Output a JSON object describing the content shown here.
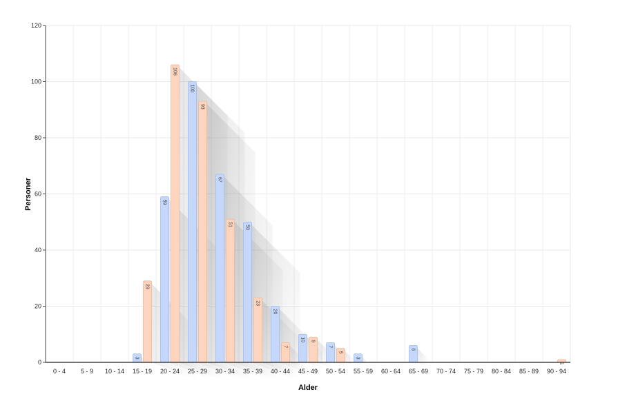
{
  "chart_data": {
    "type": "bar",
    "xlabel": "Alder",
    "ylabel": "Personer",
    "ylim": [
      0,
      120
    ],
    "yticks": [
      0,
      20,
      40,
      60,
      80,
      100,
      120
    ],
    "grid": true,
    "categories": [
      "0 - 4",
      "5 - 9",
      "10 - 14",
      "15 - 19",
      "20 - 24",
      "25 - 29",
      "30 - 34",
      "35 - 39",
      "40 - 44",
      "45 - 49",
      "50 - 54",
      "55 - 59",
      "60 - 64",
      "65 - 69",
      "70 - 74",
      "75 - 79",
      "80 - 84",
      "85 - 89",
      "90 - 94"
    ],
    "series": [
      {
        "values": [
          0,
          0,
          0,
          3,
          59,
          100,
          67,
          50,
          20,
          10,
          7,
          3,
          0,
          6,
          0,
          0,
          0,
          0,
          0
        ],
        "color": "#c5d8fb",
        "border": "#9fbcf2"
      },
      {
        "values": [
          0,
          0,
          0,
          29,
          106,
          93,
          51,
          23,
          7,
          9,
          5,
          0,
          0,
          0,
          0,
          0,
          0,
          0,
          1
        ],
        "color": "#fdd5bf",
        "border": "#f0b898"
      }
    ]
  }
}
